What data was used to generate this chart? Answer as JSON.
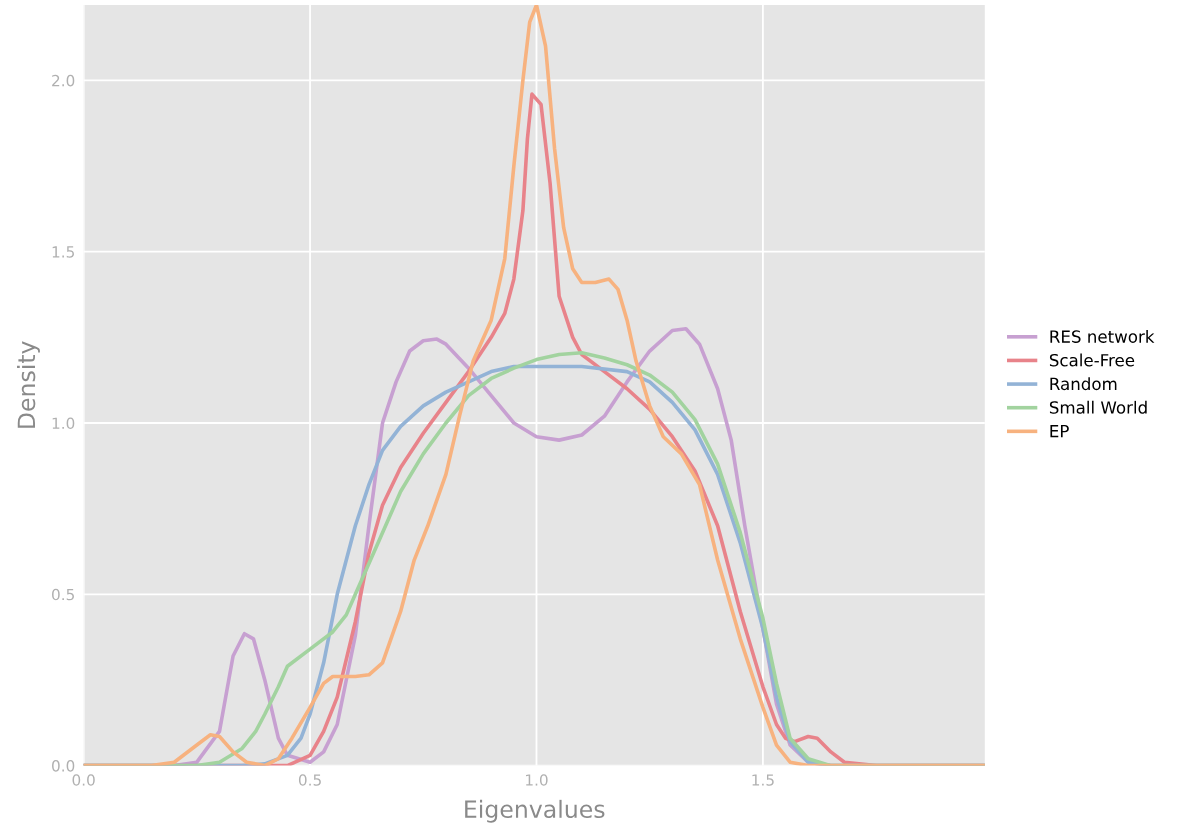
{
  "chart_data": {
    "type": "line",
    "xlabel": "Eigenvalues",
    "ylabel": "Density",
    "xlim": [
      0,
      1.99
    ],
    "ylim": [
      0,
      2.22
    ],
    "xticks": [
      {
        "value": 0,
        "label": "0.0"
      },
      0.5,
      {
        "value": 1,
        "label": "1.0"
      },
      1.5
    ],
    "yticks": [
      {
        "value": 0,
        "label": "0.0"
      },
      0.5,
      {
        "value": 1,
        "label": "1.0"
      },
      1.5,
      {
        "value": 2,
        "label": "2.0"
      }
    ],
    "grid": true,
    "legend": "right",
    "line_style": "solid",
    "series": [
      {
        "name": "RES network",
        "color": "#c7a0d1",
        "x": [
          0,
          0.2,
          0.25,
          0.3,
          0.33,
          0.355,
          0.375,
          0.4,
          0.43,
          0.45,
          0.5,
          0.53,
          0.56,
          0.6,
          0.63,
          0.66,
          0.69,
          0.72,
          0.75,
          0.78,
          0.8,
          0.85,
          0.9,
          0.95,
          1.0,
          1.05,
          1.1,
          1.15,
          1.2,
          1.25,
          1.3,
          1.33,
          1.36,
          1.4,
          1.43,
          1.46,
          1.5,
          1.53,
          1.56,
          1.6,
          1.65,
          1.99
        ],
        "values": [
          0,
          0,
          0.01,
          0.1,
          0.32,
          0.385,
          0.37,
          0.25,
          0.08,
          0.03,
          0.01,
          0.04,
          0.12,
          0.38,
          0.7,
          1.0,
          1.12,
          1.21,
          1.24,
          1.245,
          1.23,
          1.16,
          1.08,
          1.0,
          0.96,
          0.95,
          0.965,
          1.02,
          1.12,
          1.21,
          1.27,
          1.275,
          1.23,
          1.1,
          0.95,
          0.7,
          0.4,
          0.18,
          0.06,
          0.01,
          0,
          0
        ]
      },
      {
        "name": "Scale-Free",
        "color": "#e8838a",
        "x": [
          0,
          0.35,
          0.45,
          0.5,
          0.53,
          0.56,
          0.6,
          0.63,
          0.66,
          0.7,
          0.75,
          0.8,
          0.85,
          0.9,
          0.93,
          0.95,
          0.97,
          0.98,
          0.99,
          1.01,
          1.03,
          1.05,
          1.08,
          1.1,
          1.15,
          1.2,
          1.25,
          1.3,
          1.35,
          1.4,
          1.45,
          1.5,
          1.53,
          1.55,
          1.57,
          1.6,
          1.62,
          1.65,
          1.68,
          1.75,
          1.99
        ],
        "values": [
          0,
          0,
          0,
          0.03,
          0.1,
          0.2,
          0.42,
          0.62,
          0.76,
          0.87,
          0.97,
          1.06,
          1.15,
          1.25,
          1.32,
          1.42,
          1.62,
          1.83,
          1.96,
          1.93,
          1.7,
          1.37,
          1.25,
          1.2,
          1.15,
          1.1,
          1.04,
          0.96,
          0.86,
          0.7,
          0.45,
          0.23,
          0.12,
          0.08,
          0.07,
          0.085,
          0.08,
          0.04,
          0.01,
          0,
          0
        ]
      },
      {
        "name": "Random",
        "color": "#93b3d6",
        "x": [
          0,
          0.35,
          0.4,
          0.45,
          0.48,
          0.5,
          0.53,
          0.56,
          0.6,
          0.63,
          0.66,
          0.7,
          0.75,
          0.8,
          0.85,
          0.9,
          0.95,
          1.0,
          1.1,
          1.2,
          1.25,
          1.3,
          1.35,
          1.4,
          1.45,
          1.5,
          1.53,
          1.56,
          1.6,
          1.65,
          1.99
        ],
        "values": [
          0,
          0,
          0.005,
          0.03,
          0.08,
          0.15,
          0.3,
          0.5,
          0.7,
          0.82,
          0.92,
          0.99,
          1.05,
          1.09,
          1.12,
          1.15,
          1.165,
          1.165,
          1.165,
          1.15,
          1.12,
          1.06,
          0.98,
          0.85,
          0.65,
          0.4,
          0.2,
          0.07,
          0.01,
          0,
          0
        ]
      },
      {
        "name": "Small World",
        "color": "#a2d39f",
        "x": [
          0,
          0.25,
          0.3,
          0.35,
          0.38,
          0.4,
          0.43,
          0.45,
          0.5,
          0.55,
          0.58,
          0.6,
          0.65,
          0.7,
          0.75,
          0.8,
          0.85,
          0.9,
          0.95,
          1.0,
          1.05,
          1.1,
          1.15,
          1.2,
          1.25,
          1.3,
          1.35,
          1.4,
          1.45,
          1.5,
          1.53,
          1.56,
          1.6,
          1.65,
          1.99
        ],
        "values": [
          0,
          0,
          0.01,
          0.05,
          0.1,
          0.15,
          0.23,
          0.29,
          0.34,
          0.39,
          0.44,
          0.5,
          0.65,
          0.8,
          0.91,
          1.0,
          1.08,
          1.13,
          1.16,
          1.185,
          1.2,
          1.205,
          1.19,
          1.17,
          1.14,
          1.09,
          1.01,
          0.88,
          0.68,
          0.43,
          0.24,
          0.08,
          0.02,
          0,
          0
        ]
      },
      {
        "name": "EP",
        "color": "#f7b27f",
        "x": [
          0,
          0.15,
          0.2,
          0.25,
          0.28,
          0.3,
          0.33,
          0.36,
          0.4,
          0.43,
          0.46,
          0.5,
          0.53,
          0.55,
          0.6,
          0.63,
          0.66,
          0.7,
          0.73,
          0.76,
          0.8,
          0.83,
          0.86,
          0.9,
          0.93,
          0.95,
          0.97,
          0.985,
          1.0,
          1.02,
          1.04,
          1.06,
          1.08,
          1.1,
          1.13,
          1.16,
          1.18,
          1.2,
          1.22,
          1.25,
          1.28,
          1.32,
          1.36,
          1.4,
          1.45,
          1.5,
          1.53,
          1.56,
          1.6,
          1.99
        ],
        "values": [
          0,
          0,
          0.01,
          0.06,
          0.09,
          0.085,
          0.04,
          0.01,
          0,
          0.02,
          0.08,
          0.17,
          0.24,
          0.26,
          0.26,
          0.265,
          0.3,
          0.45,
          0.6,
          0.7,
          0.85,
          1.02,
          1.18,
          1.3,
          1.48,
          1.75,
          2.0,
          2.17,
          2.22,
          2.1,
          1.8,
          1.57,
          1.45,
          1.41,
          1.41,
          1.42,
          1.39,
          1.3,
          1.18,
          1.05,
          0.96,
          0.91,
          0.82,
          0.6,
          0.37,
          0.17,
          0.06,
          0.01,
          0,
          0
        ]
      }
    ]
  }
}
